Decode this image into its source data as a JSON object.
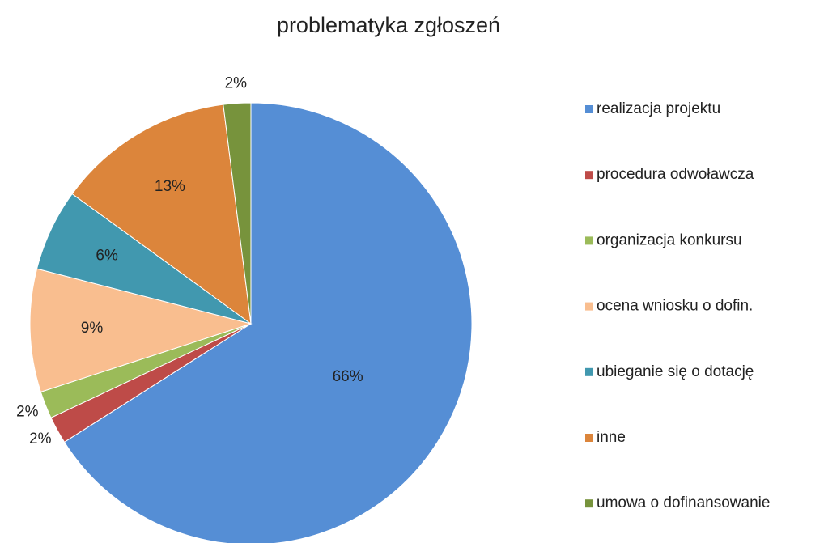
{
  "chart_data": {
    "type": "pie",
    "title": "problematyka zgłoszeń",
    "categories": [
      "realizacja projektu",
      "procedura odwoławcza",
      "organizacja konkursu",
      "ocena wniosku o dofin.",
      "ubieganie się o dotację",
      "inne",
      "umowa o dofinansowanie"
    ],
    "values": [
      66,
      2,
      2,
      9,
      6,
      13,
      2
    ],
    "value_labels": [
      "66%",
      "2%",
      "2%",
      "9%",
      "6%",
      "13%",
      "2%"
    ],
    "colors": [
      "#558ed5",
      "#be4b48",
      "#9bbb59",
      "#f9be8f",
      "#4198af",
      "#dc853b",
      "#77933c"
    ],
    "legend": "right"
  }
}
